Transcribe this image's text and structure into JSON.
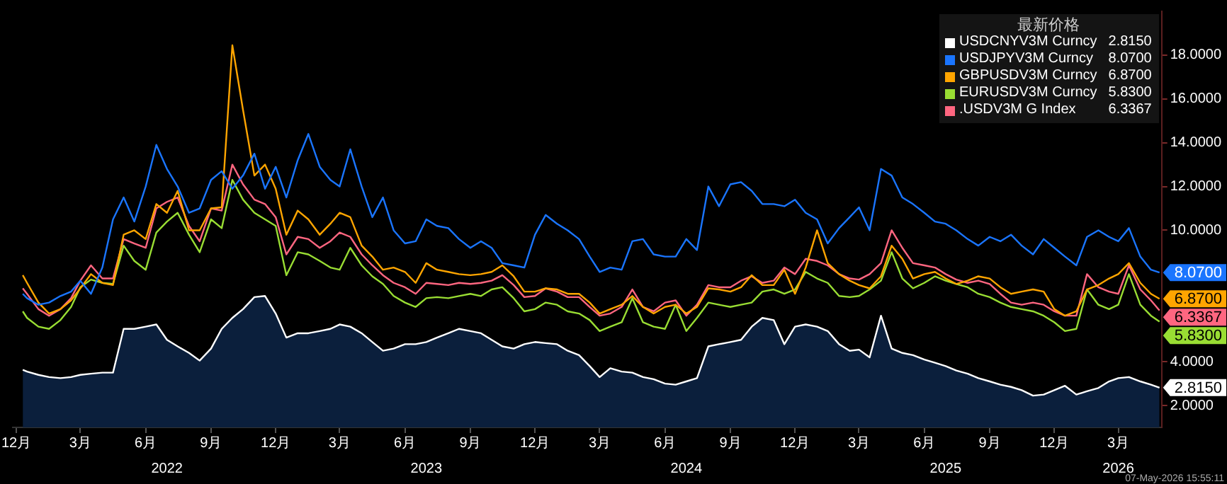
{
  "chart_data": {
    "type": "line",
    "legend": "top right",
    "legend_title": "最新价格",
    "xlim": [
      "2021-11-26",
      "2026-05-01"
    ],
    "xticks": [
      {
        "value": "2021-12-01",
        "label": "12月"
      },
      {
        "value": "2022-03-01",
        "label": "3月"
      },
      {
        "value": "2022-06-01",
        "label": "6月"
      },
      {
        "value": "2022-09-01",
        "label": "9月"
      },
      {
        "value": "2022-12-01",
        "label": "12月"
      },
      {
        "value": "2023-03-01",
        "label": "3月"
      },
      {
        "value": "2023-06-01",
        "label": "6月"
      },
      {
        "value": "2023-09-01",
        "label": "9月"
      },
      {
        "value": "2023-12-01",
        "label": "12月"
      },
      {
        "value": "2024-03-01",
        "label": "3月"
      },
      {
        "value": "2024-06-01",
        "label": "6月"
      },
      {
        "value": "2024-09-01",
        "label": "9月"
      },
      {
        "value": "2024-12-01",
        "label": "12月"
      },
      {
        "value": "2025-03-01",
        "label": "3月"
      },
      {
        "value": "2025-06-01",
        "label": "6月"
      },
      {
        "value": "2025-09-01",
        "label": "9月"
      },
      {
        "value": "2025-12-01",
        "label": "12月"
      },
      {
        "value": "2026-03-01",
        "label": "3月"
      }
    ],
    "x2lim": [
      "2021-11-26",
      "2026-05-01"
    ],
    "x2ticks": [
      {
        "value": "2022-07-01",
        "label": "2022"
      },
      {
        "value": "2023-07-01",
        "label": "2023"
      },
      {
        "value": "2024-07-01",
        "label": "2024"
      },
      {
        "value": "2025-07-01",
        "label": "2025"
      },
      {
        "value": "2026-03-01",
        "label": "2026"
      }
    ],
    "ylim": [
      1,
      20
    ],
    "yticks": [
      {
        "value": 2,
        "label": "2.0000"
      },
      {
        "value": 4,
        "label": "4.0000"
      },
      {
        "value": 10,
        "label": "10.0000"
      },
      {
        "value": 12,
        "label": "12.0000"
      },
      {
        "value": 14,
        "label": "14.0000"
      },
      {
        "value": 16,
        "label": "16.0000"
      },
      {
        "value": 18,
        "label": "18.0000"
      }
    ],
    "x": [
      "2021-12-10",
      "2021-12-16",
      "2022-01-01",
      "2022-01-16",
      "2022-02-01",
      "2022-02-16",
      "2022-03-01",
      "2022-03-16",
      "2022-04-01",
      "2022-04-16",
      "2022-05-01",
      "2022-05-16",
      "2022-06-01",
      "2022-06-16",
      "2022-07-01",
      "2022-07-16",
      "2022-08-01",
      "2022-08-16",
      "2022-09-01",
      "2022-09-16",
      "2022-10-01",
      "2022-10-16",
      "2022-11-01",
      "2022-11-16",
      "2022-12-01",
      "2022-12-16",
      "2023-01-01",
      "2023-01-16",
      "2023-02-01",
      "2023-02-16",
      "2023-03-01",
      "2023-03-16",
      "2023-04-01",
      "2023-04-16",
      "2023-05-01",
      "2023-05-16",
      "2023-06-01",
      "2023-06-16",
      "2023-07-01",
      "2023-07-16",
      "2023-08-01",
      "2023-08-16",
      "2023-09-01",
      "2023-09-16",
      "2023-10-01",
      "2023-10-16",
      "2023-11-01",
      "2023-11-16",
      "2023-12-01",
      "2023-12-16",
      "2024-01-01",
      "2024-01-16",
      "2024-02-01",
      "2024-02-16",
      "2024-03-01",
      "2024-03-16",
      "2024-04-01",
      "2024-04-16",
      "2024-05-01",
      "2024-05-16",
      "2024-06-01",
      "2024-06-16",
      "2024-07-01",
      "2024-07-16",
      "2024-08-01",
      "2024-08-16",
      "2024-09-01",
      "2024-09-16",
      "2024-10-01",
      "2024-10-16",
      "2024-11-01",
      "2024-11-16",
      "2024-12-01",
      "2024-12-16",
      "2025-01-01",
      "2025-01-16",
      "2025-02-01",
      "2025-02-16",
      "2025-03-01",
      "2025-03-16",
      "2025-04-01",
      "2025-04-16",
      "2025-05-01",
      "2025-05-16",
      "2025-06-01",
      "2025-06-16",
      "2025-07-01",
      "2025-07-16",
      "2025-08-01",
      "2025-08-16",
      "2025-09-01",
      "2025-09-16",
      "2025-10-01",
      "2025-10-16",
      "2025-11-01",
      "2025-11-16",
      "2025-12-01",
      "2025-12-16",
      "2026-01-01",
      "2026-01-16",
      "2026-02-01",
      "2026-02-16",
      "2026-03-01",
      "2026-03-16",
      "2026-04-01",
      "2026-04-16",
      "2026-04-28"
    ],
    "series": [
      {
        "name": "USDCNYV3M Curncy",
        "type": "area",
        "color": "#ffffff",
        "values": [
          3.63,
          3.55,
          3.4,
          3.3,
          3.25,
          3.3,
          3.4,
          3.45,
          3.5,
          3.5,
          5.5,
          5.5,
          5.6,
          5.7,
          5.0,
          4.7,
          4.4,
          4.05,
          4.6,
          5.5,
          6.0,
          6.4,
          6.95,
          7.0,
          6.2,
          5.1,
          5.3,
          5.3,
          5.4,
          5.5,
          5.7,
          5.6,
          5.3,
          4.9,
          4.5,
          4.6,
          4.8,
          4.8,
          4.9,
          5.1,
          5.3,
          5.5,
          5.4,
          5.3,
          5.0,
          4.7,
          4.6,
          4.8,
          4.9,
          4.85,
          4.8,
          4.5,
          4.3,
          3.8,
          3.3,
          3.7,
          3.55,
          3.5,
          3.3,
          3.2,
          3.0,
          2.95,
          3.1,
          3.25,
          4.7,
          4.8,
          4.9,
          5.0,
          5.6,
          6.0,
          5.9,
          4.8,
          5.6,
          5.7,
          5.6,
          5.4,
          4.8,
          4.5,
          4.55,
          4.2,
          6.1,
          4.6,
          4.4,
          4.3,
          4.1,
          3.95,
          3.8,
          3.6,
          3.45,
          3.25,
          3.1,
          2.95,
          2.85,
          2.7,
          2.45,
          2.5,
          2.7,
          2.9,
          2.5,
          2.65,
          2.8,
          3.1,
          3.25,
          3.3,
          3.1,
          2.95,
          2.815
        ]
      },
      {
        "name": "USDJPYV3M Curncy",
        "color": "#1a75ff",
        "values": [
          7.1,
          6.9,
          6.6,
          6.7,
          7.0,
          7.2,
          7.7,
          7.1,
          8.3,
          10.5,
          11.5,
          10.4,
          12.0,
          13.9,
          12.8,
          12.0,
          10.8,
          11.0,
          12.3,
          12.7,
          11.9,
          12.5,
          13.5,
          11.9,
          12.9,
          11.5,
          13.2,
          14.4,
          12.9,
          12.3,
          12.0,
          13.7,
          12.0,
          10.6,
          11.5,
          10.0,
          9.4,
          9.5,
          10.5,
          10.2,
          10.1,
          9.6,
          9.2,
          9.5,
          9.2,
          8.5,
          8.4,
          8.3,
          9.8,
          10.7,
          10.3,
          10.0,
          9.6,
          8.8,
          8.1,
          8.3,
          8.2,
          9.5,
          9.6,
          8.9,
          8.8,
          8.8,
          9.6,
          9.1,
          12.0,
          11.1,
          12.1,
          12.2,
          11.8,
          11.2,
          11.2,
          11.1,
          11.4,
          10.8,
          10.5,
          9.4,
          10.1,
          10.6,
          11.05,
          10.0,
          12.8,
          12.5,
          11.5,
          11.2,
          10.8,
          10.4,
          10.3,
          10.0,
          9.6,
          9.3,
          9.7,
          9.5,
          9.8,
          9.3,
          8.9,
          9.6,
          9.2,
          8.8,
          8.4,
          9.7,
          10.0,
          9.7,
          9.5,
          10.1,
          8.8,
          8.2,
          8.07
        ]
      },
      {
        "name": "GBPUSDV3M Curncy",
        "color": "#ffa500",
        "values": [
          7.95,
          7.6,
          6.7,
          6.2,
          6.4,
          6.8,
          7.35,
          8.0,
          7.6,
          7.5,
          9.8,
          10.0,
          9.6,
          11.2,
          10.8,
          11.8,
          10.0,
          10.0,
          11.0,
          11.05,
          18.45,
          15.5,
          12.5,
          13.0,
          11.9,
          9.8,
          10.9,
          10.5,
          9.8,
          10.3,
          10.8,
          10.6,
          9.3,
          8.8,
          8.2,
          8.3,
          8.1,
          7.6,
          8.5,
          8.2,
          8.1,
          8.0,
          7.95,
          8.0,
          8.1,
          8.4,
          7.9,
          7.2,
          7.2,
          7.35,
          7.3,
          7.1,
          7.1,
          6.7,
          6.2,
          6.4,
          6.6,
          7.0,
          6.5,
          6.2,
          6.5,
          6.6,
          6.2,
          6.5,
          7.35,
          7.3,
          7.2,
          7.4,
          7.95,
          7.5,
          7.5,
          8.2,
          7.1,
          8.3,
          10.0,
          8.5,
          8.0,
          7.7,
          7.5,
          7.35,
          7.9,
          9.3,
          8.7,
          7.8,
          8.0,
          8.1,
          7.8,
          7.55,
          7.7,
          7.9,
          7.8,
          7.4,
          7.1,
          7.2,
          7.3,
          7.2,
          6.4,
          6.1,
          6.3,
          7.3,
          7.5,
          7.8,
          8.0,
          8.5,
          7.6,
          7.1,
          6.87
        ]
      },
      {
        "name": "EURUSDV3M Curncy",
        "color": "#99dd33",
        "values": [
          6.3,
          6.0,
          5.6,
          5.5,
          5.9,
          6.5,
          7.4,
          7.75,
          7.6,
          7.55,
          9.3,
          8.6,
          8.2,
          9.9,
          10.4,
          10.8,
          9.8,
          9.0,
          10.5,
          10.1,
          12.3,
          11.4,
          10.8,
          10.5,
          10.2,
          7.95,
          9.0,
          8.9,
          8.6,
          8.3,
          8.2,
          9.2,
          8.4,
          7.9,
          7.55,
          7.0,
          6.7,
          6.5,
          6.9,
          6.95,
          6.9,
          7.0,
          7.1,
          7.0,
          7.3,
          7.4,
          6.9,
          6.3,
          6.4,
          6.7,
          6.6,
          6.3,
          6.2,
          5.9,
          5.4,
          5.6,
          5.8,
          6.9,
          5.8,
          5.6,
          5.5,
          6.6,
          5.4,
          6.0,
          6.7,
          6.6,
          6.5,
          6.6,
          6.7,
          7.2,
          7.3,
          7.1,
          7.3,
          8.1,
          7.8,
          7.6,
          7.0,
          6.95,
          7.0,
          7.3,
          7.7,
          9.0,
          7.8,
          7.35,
          7.6,
          7.9,
          7.7,
          7.55,
          7.4,
          7.1,
          6.95,
          6.7,
          6.5,
          6.4,
          6.3,
          6.1,
          5.8,
          5.4,
          5.5,
          7.3,
          6.6,
          6.4,
          6.6,
          8.0,
          6.6,
          6.1,
          5.83
        ]
      },
      {
        "name": ".USDV3M G Index",
        "color": "#ff6680",
        "values": [
          7.35,
          7.1,
          6.4,
          6.1,
          6.4,
          6.9,
          7.7,
          8.4,
          7.8,
          7.8,
          9.6,
          9.4,
          9.2,
          11.0,
          11.3,
          11.5,
          10.2,
          9.5,
          11.0,
          10.9,
          13.0,
          12.1,
          11.4,
          11.2,
          10.6,
          8.9,
          9.7,
          9.6,
          9.2,
          9.5,
          9.9,
          9.7,
          8.9,
          8.4,
          7.95,
          7.6,
          7.4,
          7.1,
          7.6,
          7.55,
          7.5,
          7.6,
          7.55,
          7.6,
          7.7,
          7.95,
          7.5,
          6.95,
          7.0,
          7.35,
          7.2,
          6.95,
          6.95,
          6.5,
          6.1,
          6.2,
          6.5,
          7.3,
          6.5,
          6.3,
          6.7,
          6.8,
          6.1,
          6.6,
          7.5,
          7.4,
          7.4,
          7.7,
          7.9,
          7.6,
          7.7,
          8.3,
          8.0,
          8.7,
          8.6,
          8.4,
          8.0,
          7.8,
          7.75,
          8.0,
          8.5,
          10.0,
          9.2,
          8.5,
          8.4,
          8.3,
          8.0,
          7.75,
          7.6,
          7.7,
          7.55,
          7.1,
          6.7,
          6.6,
          6.7,
          6.6,
          6.3,
          6.1,
          6.1,
          8.0,
          7.4,
          7.2,
          7.1,
          8.4,
          7.3,
          6.8,
          6.3367
        ]
      }
    ],
    "annotations": [
      {
        "text": "2.8150",
        "x": "2026-04-28",
        "y": 2.815
      },
      {
        "text": "8.0700",
        "x": "2026-04-28",
        "y": 8.07
      },
      {
        "text": "6.8700",
        "x": "2026-04-28",
        "y": 6.87
      },
      {
        "text": "5.8300",
        "x": "2026-04-28",
        "y": 5.83
      },
      {
        "text": "6.3367",
        "x": "2026-04-28",
        "y": 6.3367
      },
      "07-May-2026 15:55:11"
    ]
  }
}
